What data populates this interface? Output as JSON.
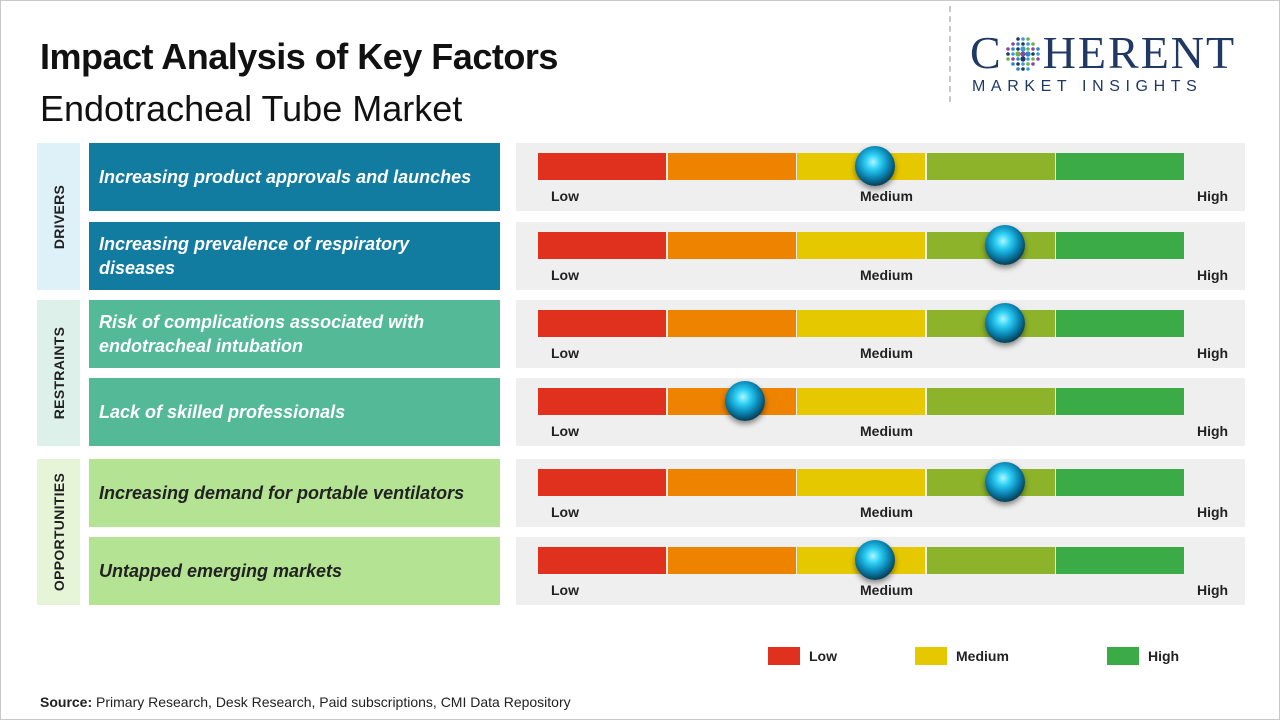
{
  "title": "Impact Analysis of Key Factors",
  "subtitle": "Endotracheal Tube Market",
  "logo": {
    "name_before": "C",
    "name_after": "HERENT",
    "tagline": "MARKET INSIGHTS"
  },
  "source": {
    "label": "Source:",
    "text": "Primary Research, Desk Research, Paid subscriptions, CMI Data Repository"
  },
  "colors": {
    "segments": [
      "#e0301e",
      "#ee8300",
      "#e5c800",
      "#8db32b",
      "#3aab47"
    ],
    "drivers_box": "#127ba0",
    "drivers_cat": "#def0f8",
    "restraints_box": "#53b997",
    "restraints_cat": "#ddf1ea",
    "opportunities_box": "#b3e393",
    "opportunities_cat": "#e6f5d8",
    "legend": {
      "low": "#e0301e",
      "medium": "#e5c800",
      "high": "#3aab47"
    }
  },
  "chart_data": {
    "type": "gauge",
    "scale": {
      "min": 0,
      "max": 5,
      "low_label": "Low",
      "medium_label": "Medium",
      "high_label": "High"
    },
    "categories": [
      {
        "name": "DRIVERS",
        "factors": [
          {
            "label": "Increasing product approvals and launches",
            "value": 2.6
          },
          {
            "label": "Increasing prevalence of respiratory diseases",
            "value": 3.6
          }
        ]
      },
      {
        "name": "RESTRAINTS",
        "factors": [
          {
            "label": "Risk of complications associated with endotracheal intubation",
            "value": 3.6
          },
          {
            "label": "Lack of skilled professionals",
            "value": 1.6
          }
        ]
      },
      {
        "name": "OPPORTUNITIES",
        "factors": [
          {
            "label": "Increasing demand for portable ventilators",
            "value": 3.6
          },
          {
            "label": "Untapped emerging markets",
            "value": 2.6
          }
        ]
      }
    ],
    "legend": [
      {
        "label": "Low",
        "color": "#e0301e"
      },
      {
        "label": "Medium",
        "color": "#e5c800"
      },
      {
        "label": "High",
        "color": "#3aab47"
      }
    ]
  }
}
